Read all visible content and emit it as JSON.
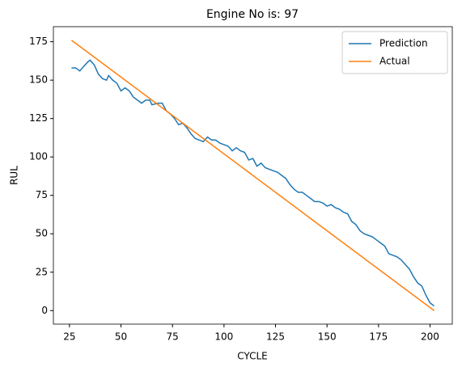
{
  "chart_data": {
    "type": "line",
    "title": "Engine No is: 97",
    "xlabel": "CYCLE",
    "ylabel": "RUL",
    "xlim": [
      17.2,
      210.8
    ],
    "xticks": [
      25,
      50,
      75,
      100,
      125,
      150,
      175,
      200
    ],
    "ylim": [
      -8.8,
      184.8
    ],
    "yticks": [
      0,
      25,
      50,
      75,
      100,
      125,
      150,
      175
    ],
    "legend": "upper right",
    "series": [
      {
        "name": "Prediction",
        "color": "#1f77b4",
        "x": [
          26,
          28,
          30,
          32,
          34,
          35,
          37,
          39,
          41,
          43,
          44,
          46,
          48,
          50,
          52,
          54,
          56,
          58,
          60,
          62,
          64,
          65,
          68,
          70,
          72,
          74,
          76,
          78,
          80,
          82,
          84,
          86,
          88,
          90,
          92,
          94,
          96,
          98,
          100,
          102,
          104,
          106,
          108,
          110,
          112,
          114,
          116,
          118,
          120,
          122,
          124,
          126,
          128,
          130,
          132,
          134,
          136,
          138,
          140,
          142,
          144,
          146,
          148,
          150,
          152,
          154,
          156,
          158,
          160,
          162,
          164,
          166,
          168,
          170,
          172,
          174,
          176,
          178,
          180,
          182,
          184,
          186,
          188,
          190,
          192,
          194,
          196,
          198,
          200,
          202
        ],
        "values": [
          158,
          158,
          156,
          159,
          162,
          163,
          160,
          154,
          151,
          150,
          153,
          150,
          148,
          143,
          145,
          143,
          139,
          137,
          135,
          137,
          137,
          134,
          135,
          135,
          130,
          128,
          125,
          121,
          122,
          119,
          115,
          112,
          111,
          110,
          113,
          111,
          111,
          109,
          108,
          107,
          104,
          106,
          104,
          103,
          98,
          99,
          94,
          96,
          93,
          92,
          91,
          90,
          88,
          86,
          82,
          79,
          77,
          77,
          75,
          73,
          71,
          71,
          70,
          68,
          69,
          67,
          66,
          64,
          63,
          58,
          56,
          52,
          50,
          49,
          48,
          46,
          44,
          42,
          37,
          36,
          35,
          33,
          30,
          27,
          22,
          18,
          16,
          10,
          5,
          3
        ]
      },
      {
        "name": "Actual",
        "color": "#ff7f0e",
        "x": [
          26,
          202
        ],
        "values": [
          176,
          0
        ]
      }
    ]
  }
}
